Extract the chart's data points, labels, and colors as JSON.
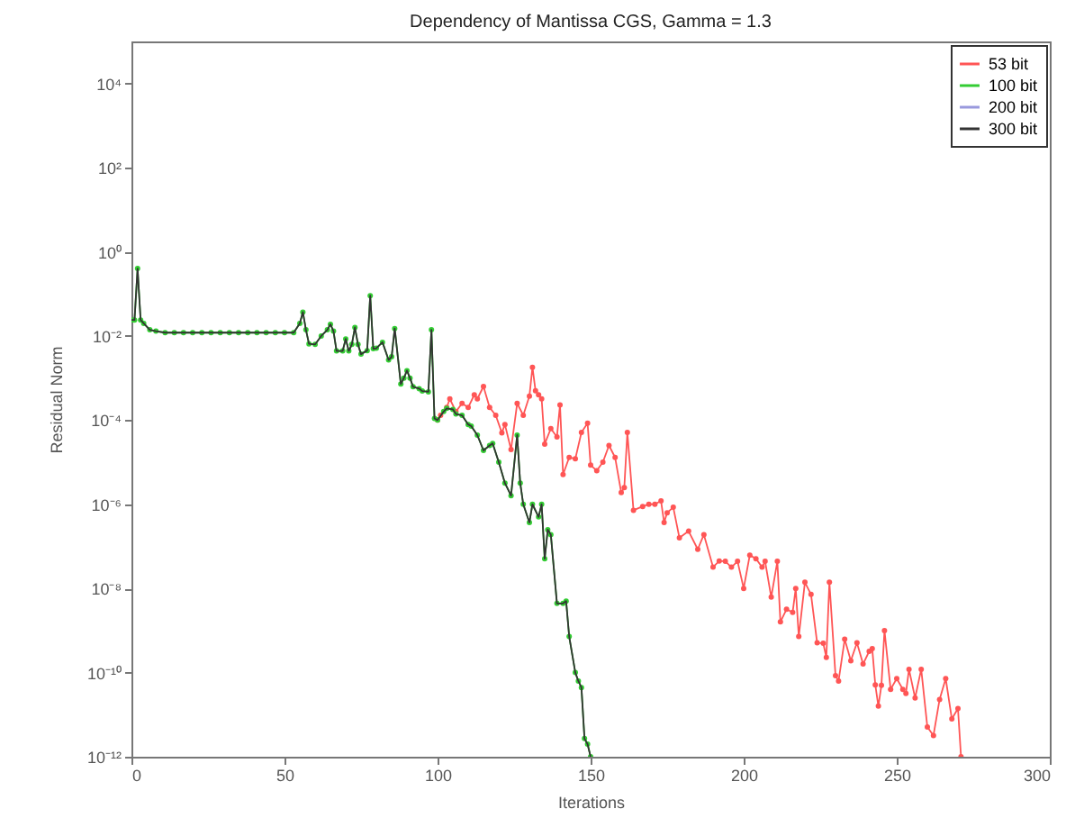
{
  "chart_data": {
    "type": "line",
    "title": "Dependency of Mantissa   CGS,  Gamma = 1.3",
    "xlabel": "Iterations",
    "ylabel": "Residual Norm",
    "xlim": [
      0,
      300
    ],
    "xticks": [
      0,
      50,
      100,
      150,
      200,
      250,
      300
    ],
    "ylim": [
      1e-12,
      100000.0
    ],
    "log": "y",
    "yticks": [
      {
        "value": 1e-12,
        "label": "10⁻¹²"
      },
      {
        "value": 1e-10,
        "label": "10⁻¹⁰"
      },
      {
        "value": 1e-08,
        "label": "10⁻⁸"
      },
      {
        "value": 1e-06,
        "label": "10⁻⁶"
      },
      {
        "value": 0.0001,
        "label": "10⁻⁴"
      },
      {
        "value": 0.01,
        "label": "10⁻²"
      },
      {
        "value": 1,
        "label": "10⁰"
      },
      {
        "value": 100,
        "label": "10²"
      },
      {
        "value": 10000,
        "label": "10⁴"
      }
    ],
    "legend": "top right",
    "series": [
      {
        "name": "53 bit",
        "color": "#ff5555",
        "marker": "circle",
        "x": [
          100,
          101,
          103,
          104,
          106,
          108,
          110,
          112,
          113,
          115,
          117,
          119,
          121,
          122,
          124,
          126,
          128,
          130,
          131,
          132,
          133,
          134,
          135,
          137,
          139,
          140,
          141,
          143,
          145,
          147,
          149,
          150,
          152,
          154,
          156,
          158,
          160,
          161,
          162,
          164,
          167,
          169,
          171,
          173,
          174,
          175,
          177,
          179,
          182,
          185,
          187,
          190,
          192,
          194,
          196,
          198,
          200,
          202,
          204,
          206,
          207,
          209,
          211,
          212,
          214,
          216,
          217,
          218,
          220,
          222,
          224,
          226,
          227,
          228,
          230,
          231,
          233,
          235,
          237,
          239,
          241,
          242,
          243,
          244,
          245,
          246,
          248,
          250,
          252,
          253,
          254,
          256,
          258,
          260,
          262,
          264,
          266,
          268,
          270,
          271
        ],
        "values": [
          0.0001,
          0.00013,
          0.0002,
          0.00032,
          0.00016,
          0.00025,
          0.0002,
          0.0004,
          0.00032,
          0.00063,
          0.0002,
          0.00013,
          5e-05,
          7.9e-05,
          2e-05,
          0.00025,
          0.00013,
          0.00037,
          0.0018,
          0.0005,
          0.0004,
          0.00032,
          2.7e-05,
          6.3e-05,
          4e-05,
          0.00023,
          5.1e-06,
          1.3e-05,
          1.2e-05,
          5.1e-05,
          8.5e-05,
          8.5e-06,
          6.3e-06,
          1e-05,
          2.5e-05,
          1.3e-05,
          1.9e-06,
          2.5e-06,
          5.1e-05,
          7.2e-07,
          8.9e-07,
          1e-06,
          1e-06,
          1.2e-06,
          3.7e-07,
          6.3e-07,
          8.5e-07,
          1.6e-07,
          2.3e-07,
          8.5e-08,
          1.9e-07,
          3.2e-08,
          4.5e-08,
          4.4e-08,
          3.2e-08,
          4.4e-08,
          1e-08,
          6.2e-08,
          5.1e-08,
          3.2e-08,
          4.4e-08,
          6.2e-09,
          4.4e-08,
          1.6e-09,
          3.2e-09,
          2.7e-09,
          1e-08,
          7.2e-10,
          1.4e-08,
          7.2e-09,
          5.1e-10,
          5e-10,
          2.3e-10,
          1.4e-08,
          8.5e-11,
          6.3e-11,
          6.2e-10,
          1.9e-10,
          5.1e-10,
          1.6e-10,
          3.2e-10,
          3.7e-10,
          5.1e-11,
          1.6e-11,
          5e-11,
          1e-09,
          4e-11,
          7.2e-11,
          4e-11,
          3.2e-11,
          1.2e-10,
          2.5e-11,
          1.2e-10,
          5.1e-12,
          3.2e-12,
          2.3e-11,
          7.2e-11,
          7.9e-12,
          1.4e-11,
          1e-12
        ]
      },
      {
        "name": "100 bit",
        "color": "#33cc33",
        "marker": "circle",
        "x": [
          0,
          1,
          2,
          3,
          4,
          6,
          8,
          11,
          14,
          17,
          20,
          23,
          26,
          29,
          32,
          35,
          38,
          41,
          44,
          47,
          50,
          53,
          55,
          56,
          57,
          58,
          60,
          62,
          64,
          65,
          66,
          67,
          69,
          70,
          71,
          72,
          73,
          74,
          75,
          77,
          78,
          79,
          80,
          82,
          84,
          85,
          86,
          88,
          89,
          90,
          91,
          92,
          94,
          95,
          97,
          98,
          99,
          100,
          102,
          103,
          105,
          106,
          108,
          110,
          111,
          113,
          115,
          117,
          118,
          120,
          122,
          124,
          126,
          127,
          128,
          130,
          131,
          133,
          134,
          135,
          136,
          137,
          139,
          141,
          142,
          143,
          145,
          146,
          147,
          148,
          149,
          150
        ],
        "values": [
          0.024,
          0.024,
          0.4,
          0.024,
          0.02,
          0.014,
          0.013,
          0.012,
          0.012,
          0.012,
          0.012,
          0.012,
          0.012,
          0.012,
          0.012,
          0.012,
          0.012,
          0.012,
          0.012,
          0.012,
          0.012,
          0.012,
          0.02,
          0.037,
          0.014,
          0.0065,
          0.0063,
          0.01,
          0.014,
          0.019,
          0.013,
          0.0044,
          0.0044,
          0.0085,
          0.0044,
          0.0063,
          0.016,
          0.0063,
          0.0037,
          0.0045,
          0.091,
          0.005,
          0.0051,
          0.0071,
          0.0027,
          0.0032,
          0.015,
          0.00072,
          0.001,
          0.0015,
          0.001,
          0.00062,
          0.00056,
          0.00049,
          0.00047,
          0.014,
          0.00011,
          0.0001,
          0.00016,
          0.00019,
          0.00018,
          0.00014,
          0.00013,
          7.9e-05,
          7.2e-05,
          4.4e-05,
          1.9e-05,
          2.5e-05,
          2.8e-05,
          1e-05,
          3.2e-06,
          1.6e-06,
          4.4e-05,
          3.2e-06,
          1e-06,
          3.7e-07,
          1e-06,
          5e-07,
          1e-06,
          5.1e-08,
          2.5e-07,
          1.9e-07,
          4.4e-09,
          4.4e-09,
          5e-09,
          7.2e-10,
          1e-10,
          6.3e-11,
          4.4e-11,
          2.7e-12,
          2e-12,
          1e-12
        ]
      },
      {
        "name": "200 bit",
        "color": "#9999dd",
        "marker": "none"
      },
      {
        "name": "300 bit",
        "color": "#333333",
        "marker": "none",
        "x": [
          0,
          1,
          2,
          3,
          4,
          6,
          8,
          11,
          14,
          17,
          20,
          23,
          26,
          29,
          32,
          35,
          38,
          41,
          44,
          47,
          50,
          53,
          55,
          56,
          57,
          58,
          60,
          62,
          64,
          65,
          66,
          67,
          69,
          70,
          71,
          72,
          73,
          74,
          75,
          77,
          78,
          79,
          80,
          82,
          84,
          85,
          86,
          88,
          89,
          90,
          91,
          92,
          94,
          95,
          97,
          98,
          99,
          100,
          102,
          103,
          105,
          106,
          108,
          110,
          111,
          113,
          115,
          117,
          118,
          120,
          122,
          124,
          126,
          127,
          128,
          130,
          131,
          133,
          134,
          135,
          136,
          137,
          139,
          141,
          142,
          143,
          145,
          146,
          147,
          148,
          149,
          150
        ],
        "values": [
          0.024,
          0.024,
          0.4,
          0.024,
          0.02,
          0.014,
          0.013,
          0.012,
          0.012,
          0.012,
          0.012,
          0.012,
          0.012,
          0.012,
          0.012,
          0.012,
          0.012,
          0.012,
          0.012,
          0.012,
          0.012,
          0.012,
          0.02,
          0.037,
          0.014,
          0.0065,
          0.0063,
          0.01,
          0.014,
          0.019,
          0.013,
          0.0044,
          0.0044,
          0.0085,
          0.0044,
          0.0063,
          0.016,
          0.0063,
          0.0037,
          0.0045,
          0.091,
          0.005,
          0.0051,
          0.0071,
          0.0027,
          0.0032,
          0.015,
          0.00072,
          0.001,
          0.0015,
          0.001,
          0.00062,
          0.00056,
          0.00049,
          0.00047,
          0.014,
          0.00011,
          0.0001,
          0.00016,
          0.00019,
          0.00018,
          0.00014,
          0.00013,
          7.9e-05,
          7.2e-05,
          4.4e-05,
          1.9e-05,
          2.5e-05,
          2.8e-05,
          1e-05,
          3.2e-06,
          1.6e-06,
          4.4e-05,
          3.2e-06,
          1e-06,
          3.7e-07,
          1e-06,
          5e-07,
          1e-06,
          5.1e-08,
          2.5e-07,
          1.9e-07,
          4.4e-09,
          4.4e-09,
          5e-09,
          7.2e-10,
          1e-10,
          6.3e-11,
          4.4e-11,
          2.7e-12,
          2e-12,
          1e-12
        ]
      }
    ]
  }
}
